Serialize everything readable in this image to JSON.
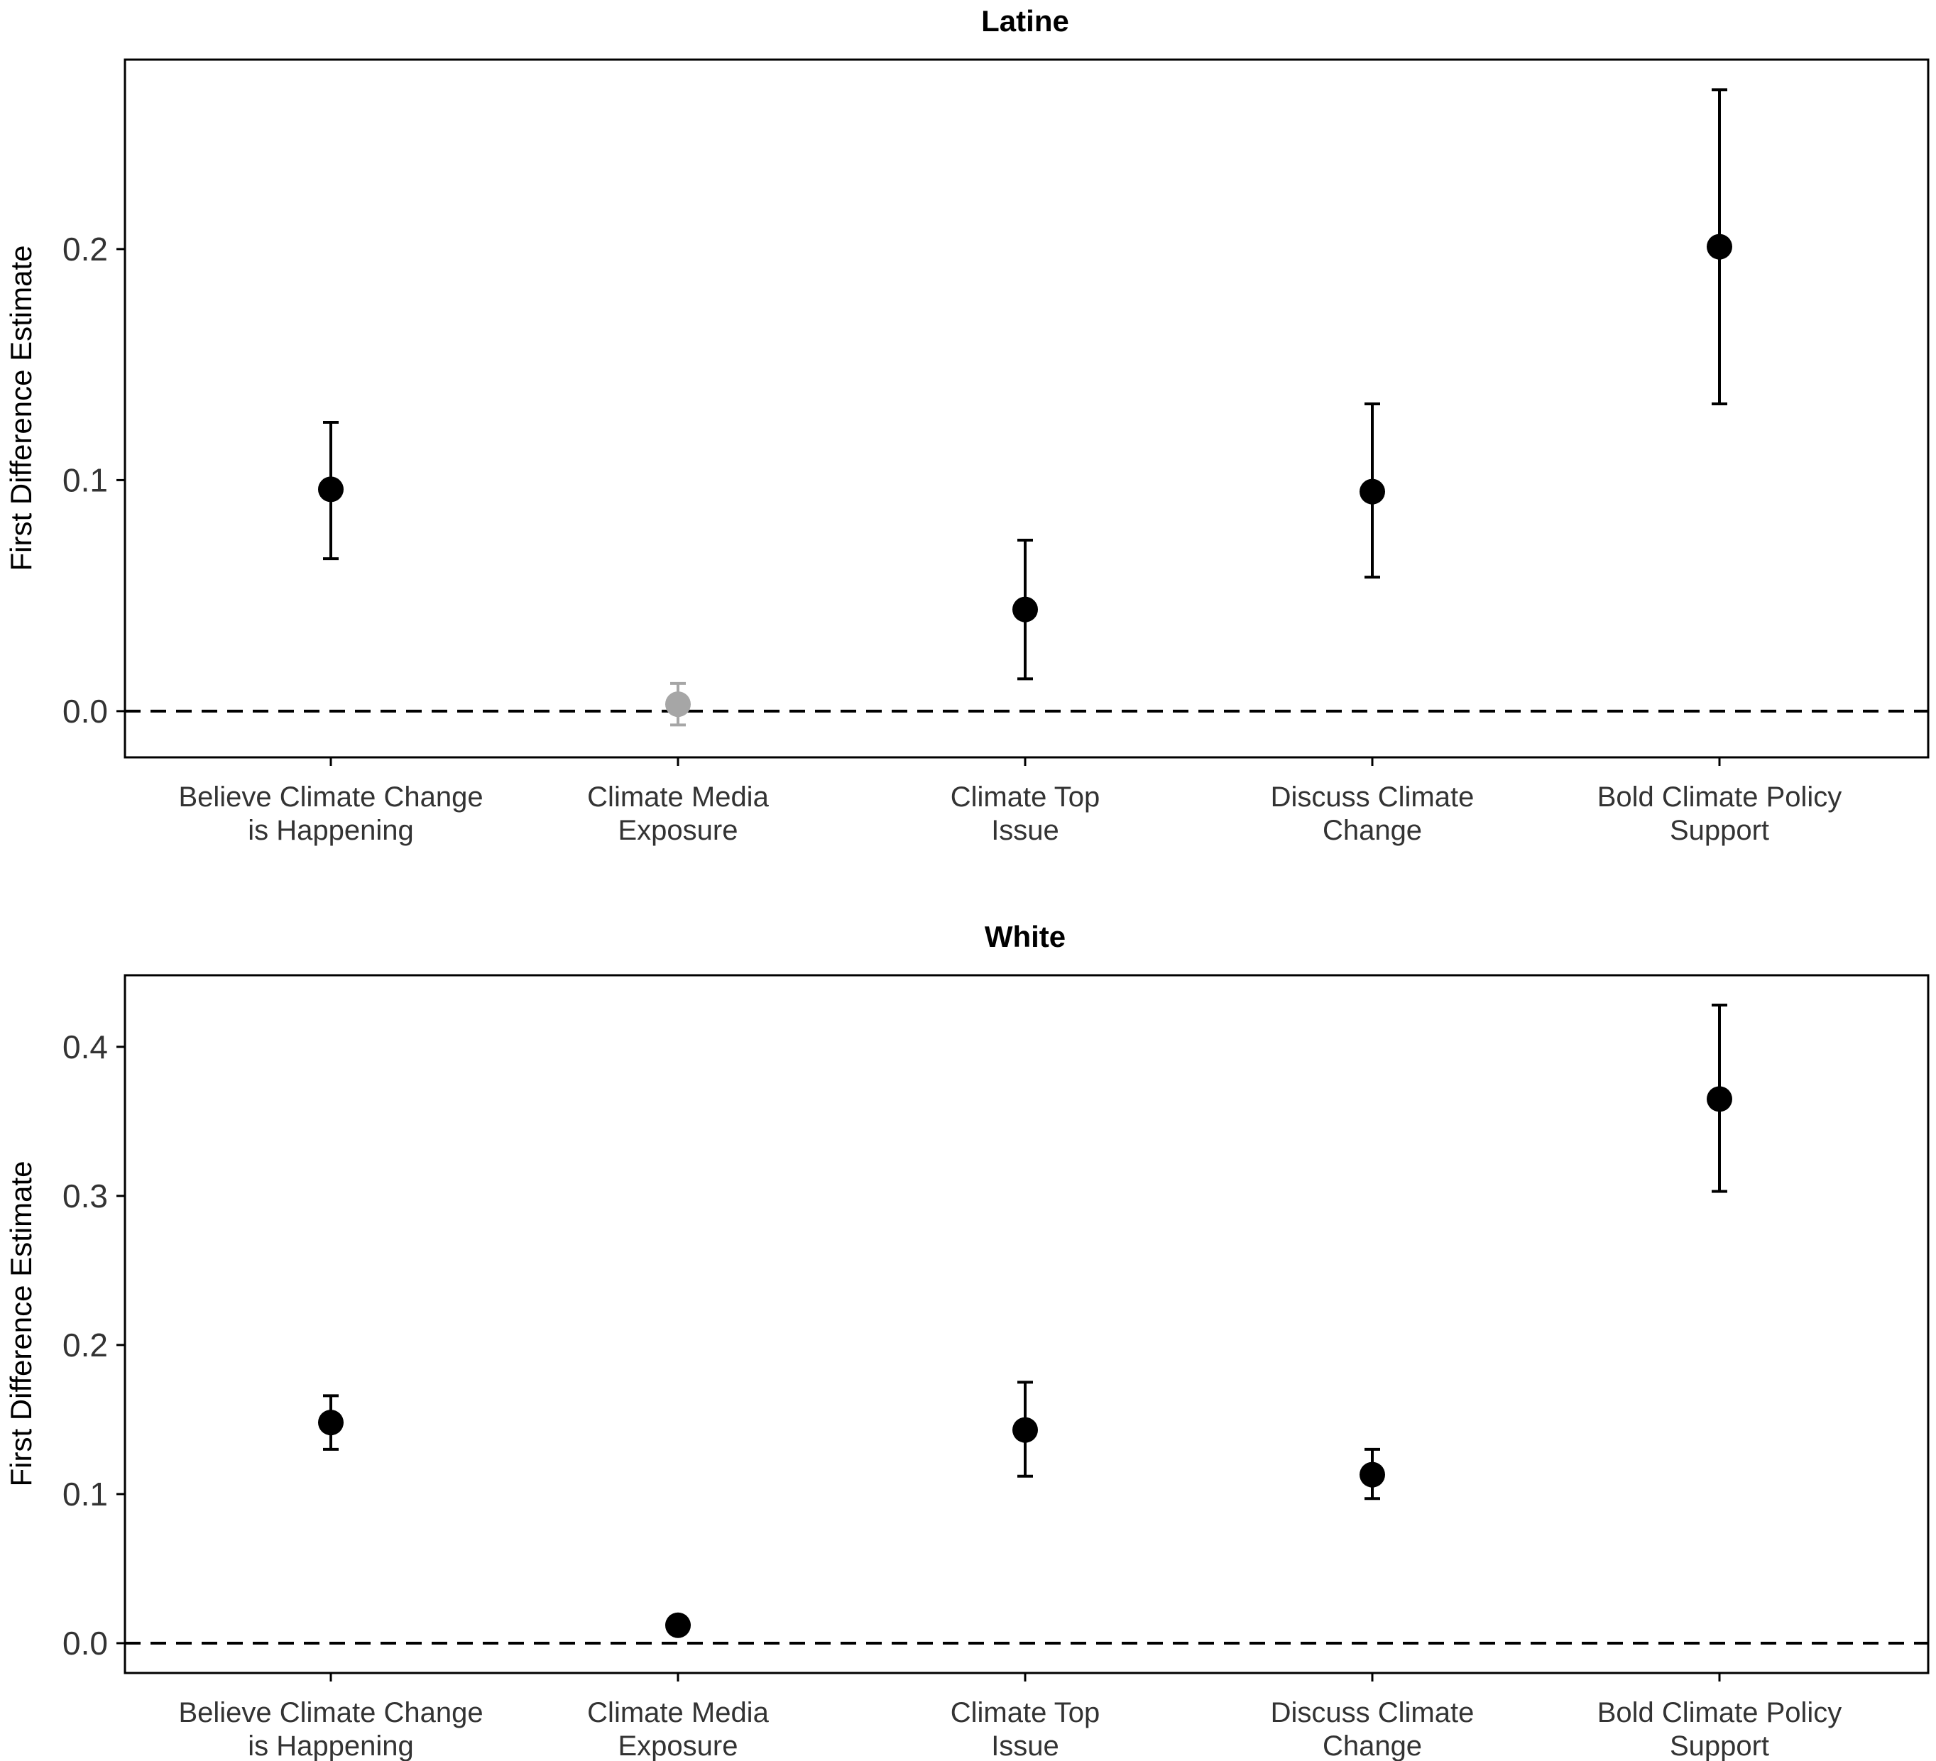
{
  "chart_data": [
    {
      "type": "scatter",
      "title": "Latine",
      "ylabel": "First Difference Estimate",
      "xlabel": "",
      "categories": [
        [
          "Believe Climate Change",
          "is Happening"
        ],
        [
          "Climate Media",
          "Exposure"
        ],
        [
          "Climate Top",
          "Issue"
        ],
        [
          "Discuss Climate",
          "Change"
        ],
        [
          "Bold Climate Policy",
          "Support"
        ]
      ],
      "estimates": [
        0.096,
        0.003,
        0.044,
        0.095,
        0.201
      ],
      "ci_lower": [
        0.066,
        -0.006,
        0.014,
        0.058,
        0.133
      ],
      "ci_upper": [
        0.125,
        0.012,
        0.074,
        0.133,
        0.269
      ],
      "significant": [
        true,
        false,
        true,
        true,
        true
      ],
      "yticks": [
        0.0,
        0.1,
        0.2
      ],
      "ylim": [
        -0.02,
        0.282
      ],
      "reference_line": 0.0,
      "grid": false
    },
    {
      "type": "scatter",
      "title": "White",
      "ylabel": "First Difference Estimate",
      "xlabel": "",
      "categories": [
        [
          "Believe Climate Change",
          "is Happening"
        ],
        [
          "Climate Media",
          "Exposure"
        ],
        [
          "Climate Top",
          "Issue"
        ],
        [
          "Discuss Climate",
          "Change"
        ],
        [
          "Bold Climate Policy",
          "Support"
        ]
      ],
      "estimates": [
        0.148,
        0.012,
        0.143,
        0.113,
        0.365
      ],
      "ci_lower": [
        0.13,
        0.012,
        0.112,
        0.097,
        0.303
      ],
      "ci_upper": [
        0.166,
        0.012,
        0.175,
        0.13,
        0.428
      ],
      "significant": [
        true,
        true,
        true,
        true,
        true
      ],
      "yticks": [
        0.0,
        0.1,
        0.2,
        0.3,
        0.4
      ],
      "ylim": [
        -0.02,
        0.448
      ],
      "reference_line": 0.0,
      "grid": false
    }
  ],
  "colors": {
    "significant": "#000000",
    "not_significant": "#a6a6a6",
    "text": "#333333",
    "frame": "#000000"
  }
}
